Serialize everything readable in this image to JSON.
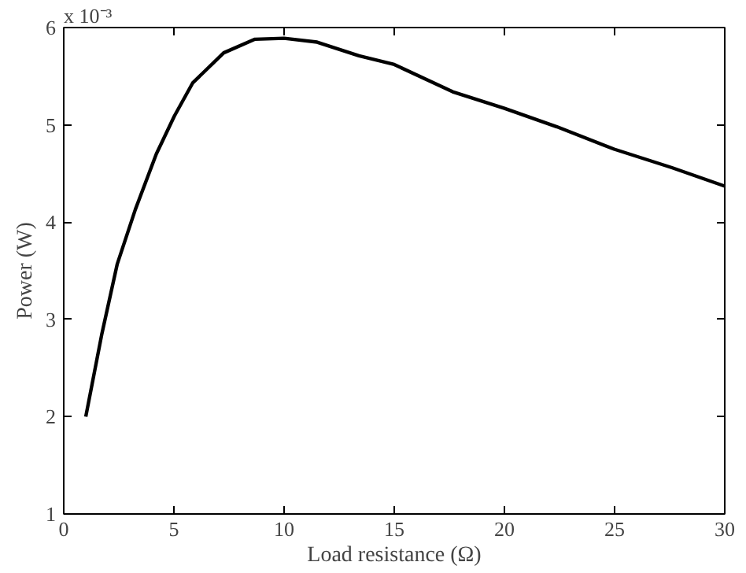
{
  "chart_data": {
    "type": "line",
    "xlabel": "Load resistance (Ω)",
    "ylabel": "Power (W)",
    "annotations": [
      "x 10⁻³"
    ],
    "x": [
      1.0,
      1.72,
      2.43,
      3.25,
      4.2,
      5.02,
      5.85,
      7.26,
      8.68,
      10.0,
      11.5,
      13.4,
      15.0,
      17.65,
      20.0,
      22.38,
      24.98,
      27.6,
      30.0
    ],
    "series": [
      {
        "color": "#000000",
        "values": [
          2.0,
          2.84,
          3.57,
          4.13,
          4.7,
          5.09,
          5.43,
          5.74,
          5.88,
          5.89,
          5.85,
          5.71,
          5.62,
          5.34,
          5.17,
          4.98,
          4.75,
          4.56,
          4.37
        ]
      }
    ],
    "xlim": [
      0,
      30
    ],
    "ylim": [
      1,
      6
    ],
    "xticks": [
      0,
      5,
      10,
      15,
      20,
      25,
      30
    ],
    "yticks": [
      1,
      2,
      3,
      4,
      5,
      6
    ],
    "grid": false,
    "marker": "none",
    "line_style": "solid"
  }
}
